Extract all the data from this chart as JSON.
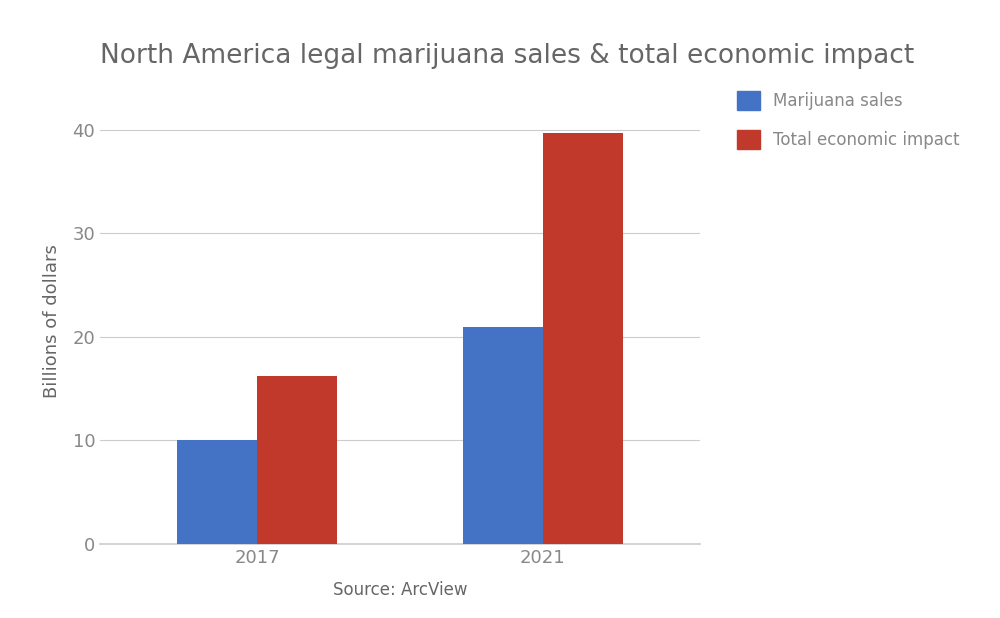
{
  "title": "North America legal marijuana sales & total economic impact",
  "title_fontsize": 19,
  "title_color": "#666666",
  "ylabel": "Billions of dollars",
  "ylabel_fontsize": 13,
  "ylabel_color": "#666666",
  "xlabel": "Source: ArcView",
  "xlabel_fontsize": 12,
  "xlabel_color": "#666666",
  "categories": [
    "2017",
    "2021"
  ],
  "marijuana_sales": [
    10.0,
    21.0
  ],
  "economic_impact": [
    16.2,
    39.7
  ],
  "bar_color_blue": "#4472c4",
  "bar_color_red": "#c0392b",
  "bar_width": 0.28,
  "ylim": [
    0,
    43
  ],
  "yticks": [
    0,
    10,
    20,
    30,
    40
  ],
  "legend_labels": [
    "Marijuana sales",
    "Total economic impact"
  ],
  "background_color": "#ffffff",
  "grid_color": "#cccccc",
  "tick_color": "#888888",
  "tick_fontsize": 13,
  "legend_fontsize": 12
}
